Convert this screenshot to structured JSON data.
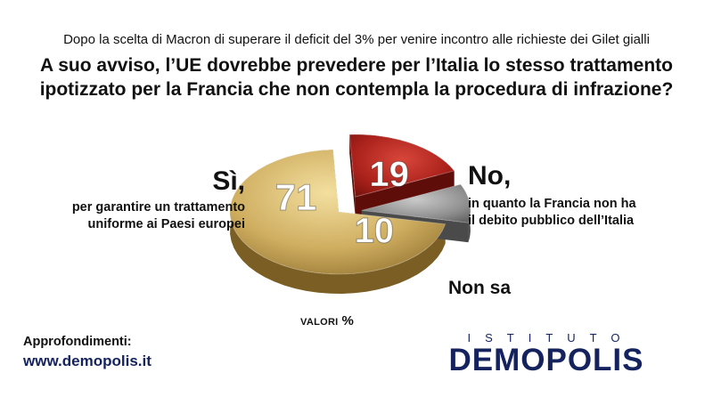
{
  "header": {
    "subtitle": "Dopo la scelta di Macron di superare il deficit del 3% per venire incontro alle richieste dei Gilet gialli",
    "question_line1": "A suo avviso, l’UE dovrebbe prevedere per l’Italia lo stesso trattamento",
    "question_line2": "ipotizzato per la Francia che non contempla la procedura di infrazione?"
  },
  "chart_data": {
    "type": "pie",
    "title": "A suo avviso, l’UE dovrebbe prevedere per l’Italia lo stesso trattamento ipotizzato per la Francia che non contempla la procedura di infrazione?",
    "unit_label": "VALORI %",
    "slices": [
      {
        "label": "Sì",
        "value": 71,
        "color": "#c9a95a",
        "description": "per garantire un trattamento uniforme ai Paesi europei",
        "exploded": false
      },
      {
        "label": "No",
        "value": 19,
        "color": "#a8201a",
        "description": "in quanto la Francia non ha il debito pubblico dell’Italia",
        "exploded": true
      },
      {
        "label": "Non sa",
        "value": 10,
        "color": "#8e8e8e",
        "description": "",
        "exploded": true
      }
    ]
  },
  "labels": {
    "yes_head": "Sì,",
    "yes_desc_line1": "per garantire un trattamento",
    "yes_desc_line2": "uniforme ai Paesi europei",
    "no_head": "No,",
    "no_desc_line1": "in quanto la Francia non ha",
    "no_desc_line2": "il debito pubblico dell’Italia",
    "ns_head": "Non sa",
    "valori": "VALORI",
    "valori_pct": "%"
  },
  "footer": {
    "approfondimenti": "Approfondimenti:",
    "website": "www.demopolis.it",
    "logo_top": "ISTITUTO",
    "logo_brand": "DEMOPOLIS"
  },
  "colors": {
    "brand_navy": "#14225e",
    "yes_gold": "#c9a95a",
    "no_red": "#a8201a",
    "ns_gray": "#8e8e8e"
  }
}
